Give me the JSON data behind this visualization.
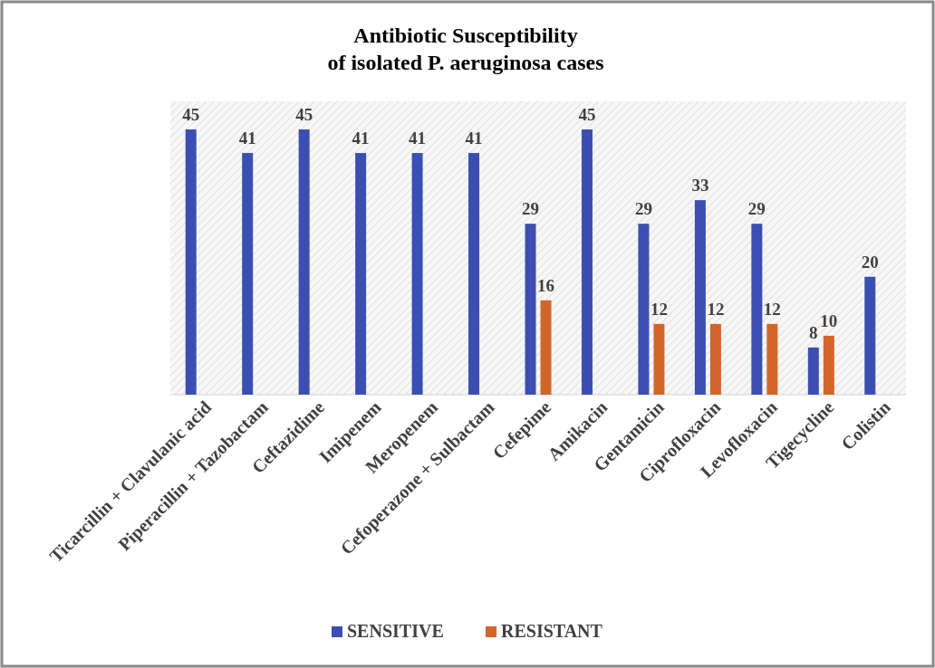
{
  "chart_data": {
    "type": "bar",
    "title": "Antibiotic Susceptibility\nof isolated P. aeruginosa cases",
    "categories": [
      "Ticarcillin + Clavulanic acid",
      "Piperacillin + Tazobactam",
      "Ceftazidime",
      "Imipenem",
      "Meropenem",
      "Cefoperazone + Sulbactam",
      "Cefepime",
      "Amikacin",
      "Gentamicin",
      "Ciprofloxacin",
      "Levofloxacin",
      "Tigecycline",
      "Colistin"
    ],
    "series": [
      {
        "name": "SENSITIVE",
        "color": "#3b4fb3",
        "values": [
          45,
          41,
          45,
          41,
          41,
          41,
          29,
          45,
          29,
          33,
          29,
          8,
          20
        ]
      },
      {
        "name": "RESISTANT",
        "color": "#d2662a",
        "values": [
          null,
          null,
          null,
          null,
          null,
          null,
          16,
          null,
          12,
          12,
          12,
          10,
          null
        ]
      }
    ],
    "data_labels": true,
    "legend": "bottom",
    "grid": false
  }
}
